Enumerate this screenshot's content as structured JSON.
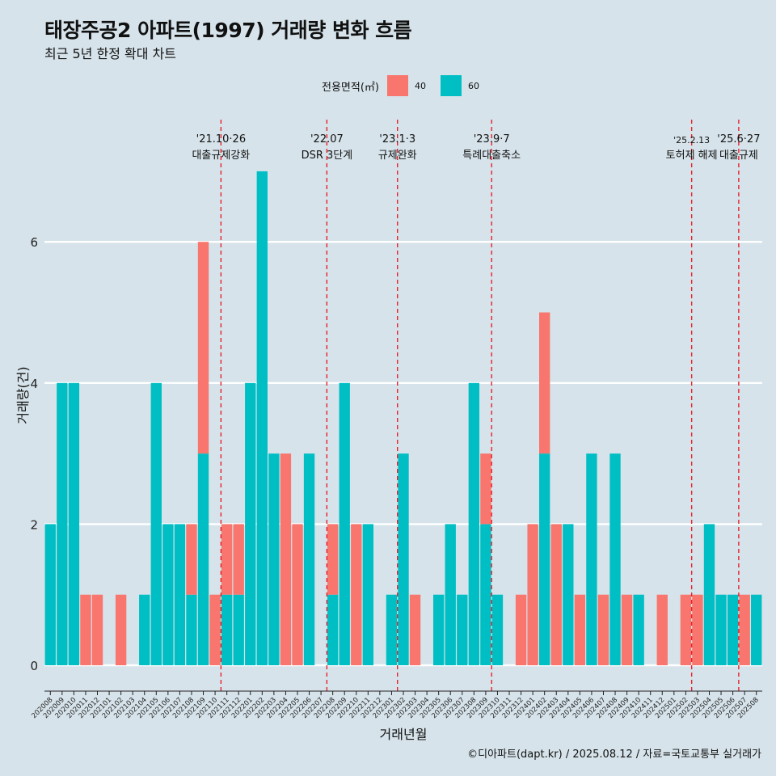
{
  "title": "태장주공2 아파트(1997) 거래량 변화 흐름",
  "subtitle": "최근 5년 한정 확대 차트",
  "caption": "©디아파트(dapt.kr) / 2025.08.12 / 자료=국토교통부 실거래가",
  "legend": {
    "title": "전용면적(㎡)",
    "items": [
      {
        "label": "40",
        "color": "#f8766d"
      },
      {
        "label": "60",
        "color": "#00bfc4"
      }
    ]
  },
  "chart_data": {
    "type": "bar",
    "stacked": true,
    "xlabel": "거래년월",
    "ylabel": "거래량(건)",
    "ylim": [
      0,
      7
    ],
    "yticks": [
      0,
      2,
      4,
      6
    ],
    "categories": [
      "202008",
      "202009",
      "202010",
      "202011",
      "202012",
      "202101",
      "202102",
      "202103",
      "202104",
      "202105",
      "202106",
      "202107",
      "202108",
      "202109",
      "202110",
      "202111",
      "202112",
      "202201",
      "202202",
      "202203",
      "202204",
      "202205",
      "202206",
      "202207",
      "202208",
      "202209",
      "202210",
      "202211",
      "202212",
      "202301",
      "202302",
      "202303",
      "202304",
      "202305",
      "202306",
      "202307",
      "202308",
      "202309",
      "202310",
      "202311",
      "202312",
      "202401",
      "202402",
      "202403",
      "202404",
      "202405",
      "202406",
      "202407",
      "202408",
      "202409",
      "202410",
      "202411",
      "202412",
      "202501",
      "202502",
      "202503",
      "202504",
      "202505",
      "202506",
      "202507",
      "202508"
    ],
    "series": [
      {
        "name": "40",
        "color": "#f8766d",
        "values": [
          0,
          0,
          0,
          1,
          1,
          0,
          1,
          0,
          0,
          0,
          0,
          0,
          1,
          3,
          1,
          1,
          1,
          0,
          0,
          0,
          3,
          2,
          0,
          0,
          1,
          0,
          2,
          0,
          0,
          0,
          0,
          1,
          0,
          0,
          0,
          0,
          0,
          1,
          0,
          0,
          1,
          2,
          2,
          2,
          0,
          1,
          0,
          1,
          0,
          1,
          0,
          0,
          1,
          0,
          1,
          1,
          0,
          0,
          0,
          1,
          0
        ]
      },
      {
        "name": "60",
        "color": "#00bfc4",
        "values": [
          2,
          4,
          4,
          0,
          0,
          0,
          0,
          0,
          1,
          4,
          2,
          2,
          1,
          3,
          0,
          1,
          1,
          4,
          7,
          3,
          0,
          0,
          3,
          0,
          1,
          4,
          0,
          2,
          0,
          1,
          3,
          0,
          0,
          1,
          2,
          1,
          4,
          2,
          1,
          0,
          0,
          0,
          3,
          0,
          2,
          0,
          3,
          0,
          3,
          0,
          1,
          0,
          0,
          0,
          0,
          0,
          2,
          1,
          1,
          0,
          1
        ]
      }
    ],
    "bar_groups": [
      [
        2
      ],
      [
        4
      ],
      [
        4
      ],
      [
        1
      ],
      [
        1,
        1
      ],
      [
        4
      ],
      [
        1,
        3
      ],
      [
        3
      ],
      [
        1
      ],
      [
        4
      ],
      [
        2
      ],
      [
        2
      ],
      [
        2,
        4
      ],
      [
        3,
        6
      ],
      [
        1,
        1,
        2
      ],
      [
        1,
        4
      ],
      [
        2,
        2
      ],
      [
        4
      ],
      [
        7
      ],
      [
        3
      ],
      [
        3,
        5
      ],
      [
        2,
        4
      ],
      [
        3
      ],
      [],
      [
        1,
        2
      ],
      [
        4
      ],
      [
        2,
        1
      ],
      [
        2
      ],
      [],
      [
        1,
        1
      ],
      [
        3
      ],
      [
        1
      ],
      [],
      [
        1
      ],
      [
        2
      ],
      [
        1
      ],
      [
        4
      ],
      [
        1,
        3
      ],
      [
        1
      ],
      [],
      [
        1
      ],
      [
        2,
        3
      ],
      [
        2,
        2
      ],
      [
        2,
        5
      ],
      [
        2
      ],
      [
        1,
        3
      ],
      [
        3
      ],
      [
        1,
        1
      ],
      [
        3
      ],
      [
        1,
        4
      ],
      [
        1
      ],
      [],
      [
        1,
        1
      ],
      [],
      [
        1,
        1
      ],
      [
        1,
        2
      ],
      [
        2
      ],
      [
        1
      ],
      [
        1,
        1
      ],
      [
        1,
        1
      ],
      [
        1
      ]
    ],
    "events": [
      {
        "date": "'21.10·26",
        "label": "대출규제강화",
        "after": "202110"
      },
      {
        "date": "'22.07",
        "label": "DSR 3단계",
        "after": "202207"
      },
      {
        "date": "'23.1·3",
        "label": "규제완화",
        "after": "202301"
      },
      {
        "date": "'23.9·7",
        "label": "특례대출축소",
        "after": "202309"
      },
      {
        "date": "'25.2.13",
        "label": "토허제 해제",
        "after": "202502"
      },
      {
        "date": "'25.6·27",
        "label": "대출규제",
        "after": "202506"
      }
    ]
  }
}
